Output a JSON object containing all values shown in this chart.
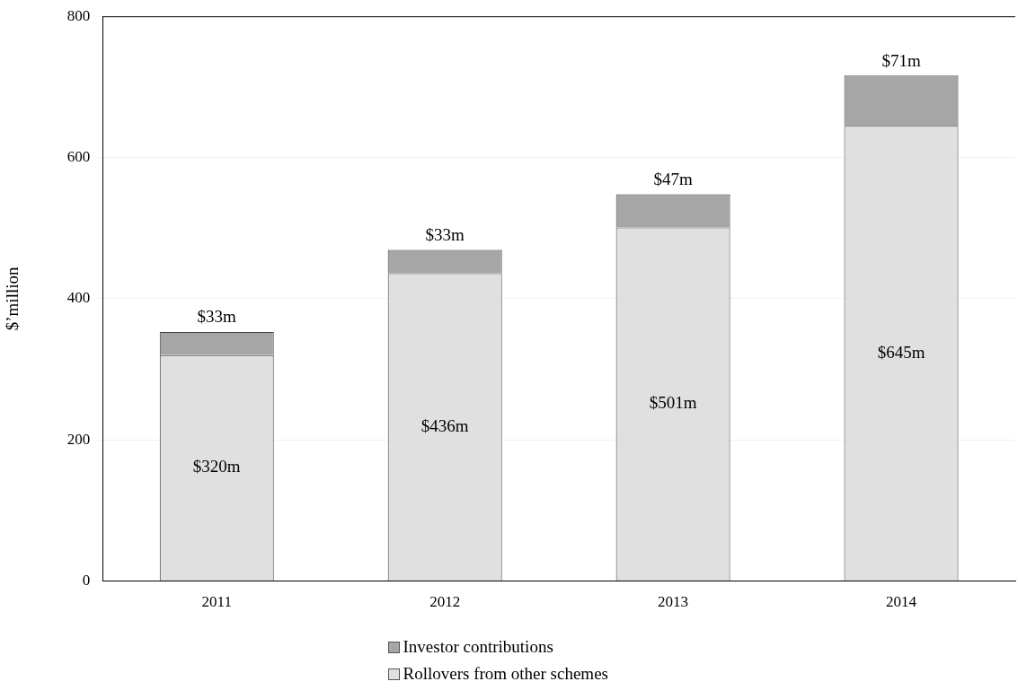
{
  "chart_data": {
    "type": "bar",
    "stacked": true,
    "ylabel": "$’million",
    "categories": [
      "2011",
      "2012",
      "2013",
      "2014"
    ],
    "series": [
      {
        "name": "Rollovers from other schemes",
        "color": "#e0e0e0",
        "values": [
          320,
          436,
          501,
          645
        ],
        "value_labels": [
          "$320m",
          "$436m",
          "$501m",
          "$645m"
        ]
      },
      {
        "name": "Investor contributions",
        "color": "#a6a6a6",
        "values": [
          33,
          33,
          47,
          71
        ],
        "value_labels": [
          "$33m",
          "$33m",
          "$47m",
          "$71m"
        ]
      }
    ],
    "ylim": [
      0,
      800
    ],
    "yticks": [
      0,
      200,
      400,
      600,
      800
    ],
    "grid": "y",
    "legend": "bottom"
  }
}
